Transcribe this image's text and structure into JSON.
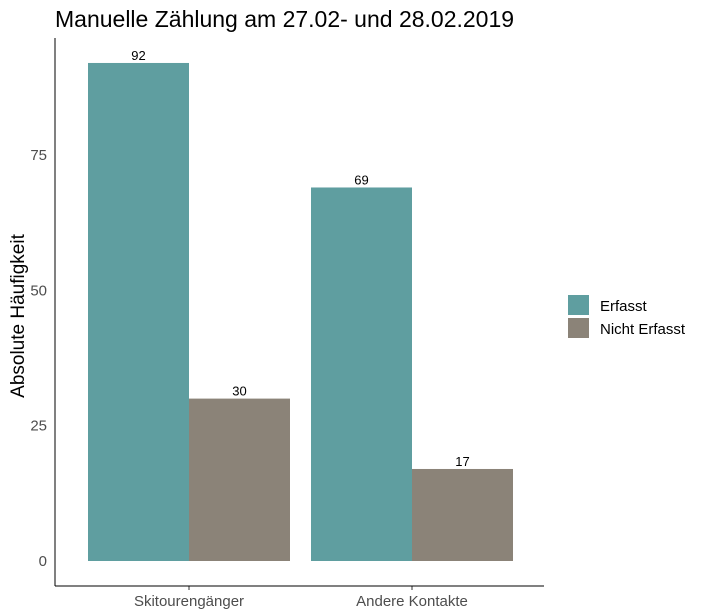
{
  "chart_data": {
    "type": "bar",
    "title": "Manuelle Zählung am 27.02- und 28.02.2019",
    "xlabel": "",
    "ylabel": "Absolute Häufigkeit",
    "categories": [
      "Skitourengänger",
      "Andere Kontakte"
    ],
    "series": [
      {
        "name": "Erfasst",
        "values": [
          92,
          69
        ],
        "color": "#5f9ea0"
      },
      {
        "name": "Nicht Erfasst",
        "values": [
          30,
          17
        ],
        "color": "#8b8378"
      }
    ],
    "ylim": [
      0,
      95
    ],
    "yticks": [
      0,
      25,
      50,
      75
    ],
    "grid": false,
    "legend": "right"
  }
}
